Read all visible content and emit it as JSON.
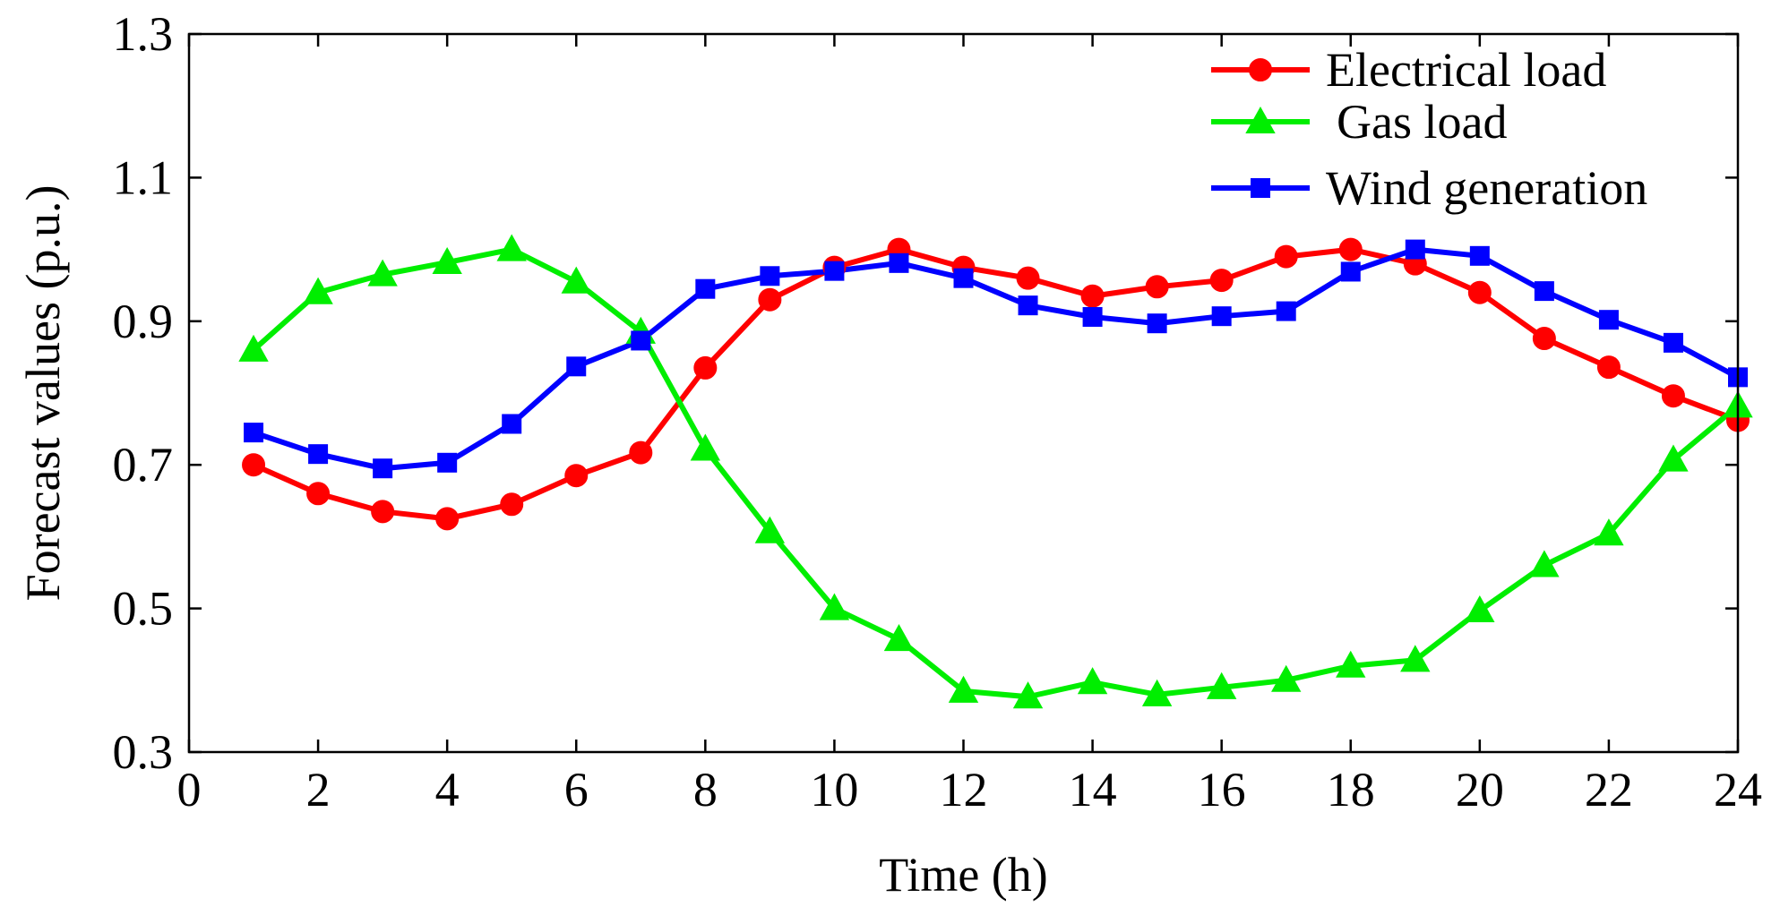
{
  "chart_data": {
    "type": "line",
    "title": "",
    "xlabel": "Time (h)",
    "ylabel": "Forecast values (p.u.)",
    "xlim": [
      0,
      24
    ],
    "ylim": [
      0.3,
      1.3
    ],
    "xticks": [
      0,
      2,
      4,
      6,
      8,
      10,
      12,
      14,
      16,
      18,
      20,
      22,
      24
    ],
    "yticks": [
      0.3,
      0.5,
      0.7,
      0.9,
      1.1,
      1.3
    ],
    "xtick_labels": [
      "0",
      "2",
      "4",
      "6",
      "8",
      "10",
      "12",
      "14",
      "16",
      "18",
      "20",
      "22",
      "24"
    ],
    "ytick_labels": [
      "0.3",
      "0.5",
      "0.7",
      "0.9",
      "1.1",
      "1.3"
    ],
    "grid": false,
    "legend_position": "top-right",
    "x": [
      1,
      2,
      3,
      4,
      5,
      6,
      7,
      8,
      9,
      10,
      11,
      12,
      13,
      14,
      15,
      16,
      17,
      18,
      19,
      20,
      21,
      22,
      23,
      24
    ],
    "series": [
      {
        "name": "Electrical load",
        "color": "#ff0000",
        "marker": "circle",
        "values": [
          0.7,
          0.66,
          0.635,
          0.625,
          0.645,
          0.685,
          0.717,
          0.835,
          0.93,
          0.975,
          1.0,
          0.975,
          0.96,
          0.935,
          0.948,
          0.957,
          0.99,
          1.0,
          0.98,
          0.94,
          0.876,
          0.836,
          0.796,
          0.762
        ]
      },
      {
        "name": "Gas load",
        "color": "#00ee00",
        "marker": "triangle",
        "values": [
          0.86,
          0.94,
          0.965,
          0.982,
          1.0,
          0.955,
          0.885,
          0.722,
          0.607,
          0.5,
          0.457,
          0.385,
          0.377,
          0.397,
          0.38,
          0.39,
          0.4,
          0.42,
          0.428,
          0.497,
          0.56,
          0.604,
          0.707,
          0.782
        ]
      },
      {
        "name": "Wind generation",
        "color": "#0000ff",
        "marker": "square",
        "values": [
          0.745,
          0.715,
          0.695,
          0.703,
          0.757,
          0.837,
          0.873,
          0.945,
          0.963,
          0.97,
          0.981,
          0.96,
          0.922,
          0.906,
          0.897,
          0.907,
          0.914,
          0.969,
          1.0,
          0.991,
          0.942,
          0.902,
          0.87,
          0.822
        ]
      }
    ]
  }
}
